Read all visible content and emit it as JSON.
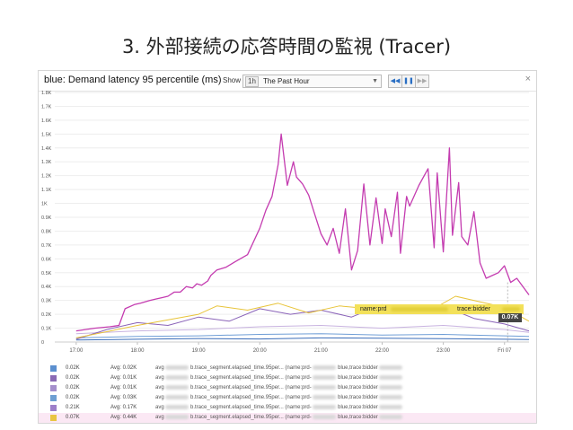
{
  "slide": {
    "title": "3. 外部接続の応答時間の監視 (Tracer)"
  },
  "graph": {
    "title": "blue: Demand latency 95 percentile (ms)",
    "show_label": "Show",
    "range_badge": "1h",
    "range_value": "The Past Hour",
    "controls": {
      "prev": "◀◀",
      "pause": "❚❚",
      "next": "▶▶"
    },
    "close": "×"
  },
  "chart_data": {
    "type": "line",
    "title": "blue: Demand latency 95 percentile (ms)",
    "y_ticks": [
      "1.8K",
      "1.7K",
      "1.6K",
      "1.5K",
      "1.4K",
      "1.3K",
      "1.2K",
      "1.1K",
      "1K",
      "0.9K",
      "0.8K",
      "0.7K",
      "0.6K",
      "0.5K",
      "0.4K",
      "0.3K",
      "0.2K",
      "0.1K",
      "0"
    ],
    "x_ticks": [
      "17:00",
      "18:00",
      "19:00",
      "20:00",
      "21:00",
      "22:00",
      "23:00",
      "Fri 07"
    ],
    "ylim": [
      0,
      1800
    ],
    "series": [
      {
        "name": "",
        "color": "#c43cb0",
        "x": [
          0,
          0.3,
          0.55,
          0.7,
          0.8,
          0.95,
          1.05,
          1.2,
          1.3,
          1.4,
          1.5,
          1.6,
          1.7,
          1.8,
          1.9,
          1.97,
          2.05,
          2.15,
          2.2,
          2.3,
          2.45,
          2.6,
          2.8,
          3.0,
          3.1,
          3.2,
          3.3,
          3.35,
          3.45,
          3.55,
          3.6,
          3.7,
          3.8,
          3.9,
          4.0,
          4.1,
          4.2,
          4.3,
          4.4,
          4.5,
          4.6,
          4.7,
          4.8,
          4.9,
          5.0,
          5.05,
          5.15,
          5.25,
          5.3,
          5.4,
          5.45,
          5.6,
          5.75,
          5.85,
          5.9,
          6.0,
          6.1,
          6.15,
          6.25,
          6.3,
          6.4,
          6.5,
          6.6,
          6.7,
          6.8,
          6.9,
          7.0,
          7.1,
          7.2,
          7.4
        ],
        "values": [
          80,
          100,
          110,
          120,
          240,
          270,
          280,
          300,
          310,
          320,
          330,
          360,
          360,
          400,
          390,
          420,
          410,
          440,
          480,
          520,
          540,
          580,
          630,
          820,
          950,
          1050,
          1280,
          1500,
          1130,
          1300,
          1190,
          1140,
          1060,
          920,
          780,
          700,
          820,
          640,
          960,
          520,
          660,
          1140,
          700,
          1040,
          710,
          960,
          760,
          1080,
          640,
          1050,
          980,
          1130,
          1250,
          680,
          1220,
          650,
          1400,
          770,
          1150,
          760,
          700,
          940,
          570,
          460,
          480,
          500,
          550,
          430,
          460,
          340
        ]
      },
      {
        "name": "",
        "color": "#e8c43a",
        "x": [
          0,
          1,
          2,
          2.3,
          2.8,
          3.3,
          3.8,
          4.3,
          4.8,
          5.3,
          5.8,
          6.2,
          6.6,
          7,
          7.4
        ],
        "values": [
          30,
          120,
          200,
          260,
          230,
          280,
          210,
          260,
          240,
          250,
          230,
          330,
          290,
          250,
          150
        ]
      },
      {
        "name": "",
        "color": "#8a63b8",
        "x": [
          0,
          0.5,
          1,
          1.5,
          2,
          2.5,
          3,
          3.5,
          4,
          4.5,
          5,
          5.5,
          6,
          6.5,
          7,
          7.4
        ],
        "values": [
          20,
          90,
          140,
          120,
          180,
          150,
          240,
          200,
          230,
          180,
          270,
          210,
          260,
          170,
          130,
          80
        ]
      },
      {
        "name": "",
        "color": "#6f9ed6",
        "x": [
          0,
          1,
          2,
          3,
          4,
          5,
          6,
          7,
          7.4
        ],
        "values": [
          30,
          40,
          45,
          55,
          60,
          50,
          55,
          45,
          40
        ]
      },
      {
        "name": "",
        "color": "#c8b3e0",
        "x": [
          0,
          1,
          2,
          3,
          4,
          5,
          6,
          7,
          7.4
        ],
        "values": [
          60,
          80,
          90,
          110,
          120,
          100,
          120,
          90,
          70
        ]
      },
      {
        "name": "",
        "color": "#3a6cb8",
        "x": [
          0,
          1,
          2,
          3,
          4,
          5,
          6,
          7,
          7.4
        ],
        "values": [
          15,
          20,
          25,
          22,
          30,
          28,
          24,
          20,
          18
        ]
      }
    ]
  },
  "legend": [
    {
      "color": "#5b8fcf",
      "value": "0.02K",
      "avg": "Avg: 0.02K",
      "metric_a": "avg",
      "metric_b": "b.trace_segment.elapsed_time.95per...",
      "metric_c": "(name:prd-",
      "metric_d": "blue,trace:bidder"
    },
    {
      "color": "#8a6ab4",
      "value": "0.02K",
      "avg": "Avg: 0.01K",
      "metric_a": "avg",
      "metric_b": "b.trace_segment.elapsed_time.95per...",
      "metric_c": "(name:prd-",
      "metric_d": "blue,trace:bidder"
    },
    {
      "color": "#a58fcc",
      "value": "0.02K",
      "avg": "Avg: 0.01K",
      "metric_a": "avg",
      "metric_b": "b.trace_segment.elapsed_time.95per...",
      "metric_c": "(name:prd-",
      "metric_d": "blue,trace:bidder"
    },
    {
      "color": "#6e9fd2",
      "value": "0.02K",
      "avg": "Avg: 0.03K",
      "metric_a": "avg",
      "metric_b": "b.trace_segment.elapsed_time.95per...",
      "metric_c": "(name:prd-",
      "metric_d": "blue,trace:bidder"
    },
    {
      "color": "#9d7fc9",
      "value": "0.21K",
      "avg": "Avg: 0.17K",
      "metric_a": "avg",
      "metric_b": "b.trace_segment.elapsed_time.95per...",
      "metric_c": "(name:prd-",
      "metric_d": "blue,trace:bidder"
    },
    {
      "color": "#e9c542",
      "value": "0.07K",
      "avg": "Avg: 0.44K",
      "metric_a": "avg",
      "metric_b": "b.trace_segment.elapsed_time.95per...",
      "metric_c": "(name:prd-",
      "metric_d": "blue,trace:bidder",
      "highlight": true
    }
  ],
  "tooltip": {
    "name_label": "name:prd",
    "trace_label": "trace:bidder",
    "value": "0.07K"
  }
}
